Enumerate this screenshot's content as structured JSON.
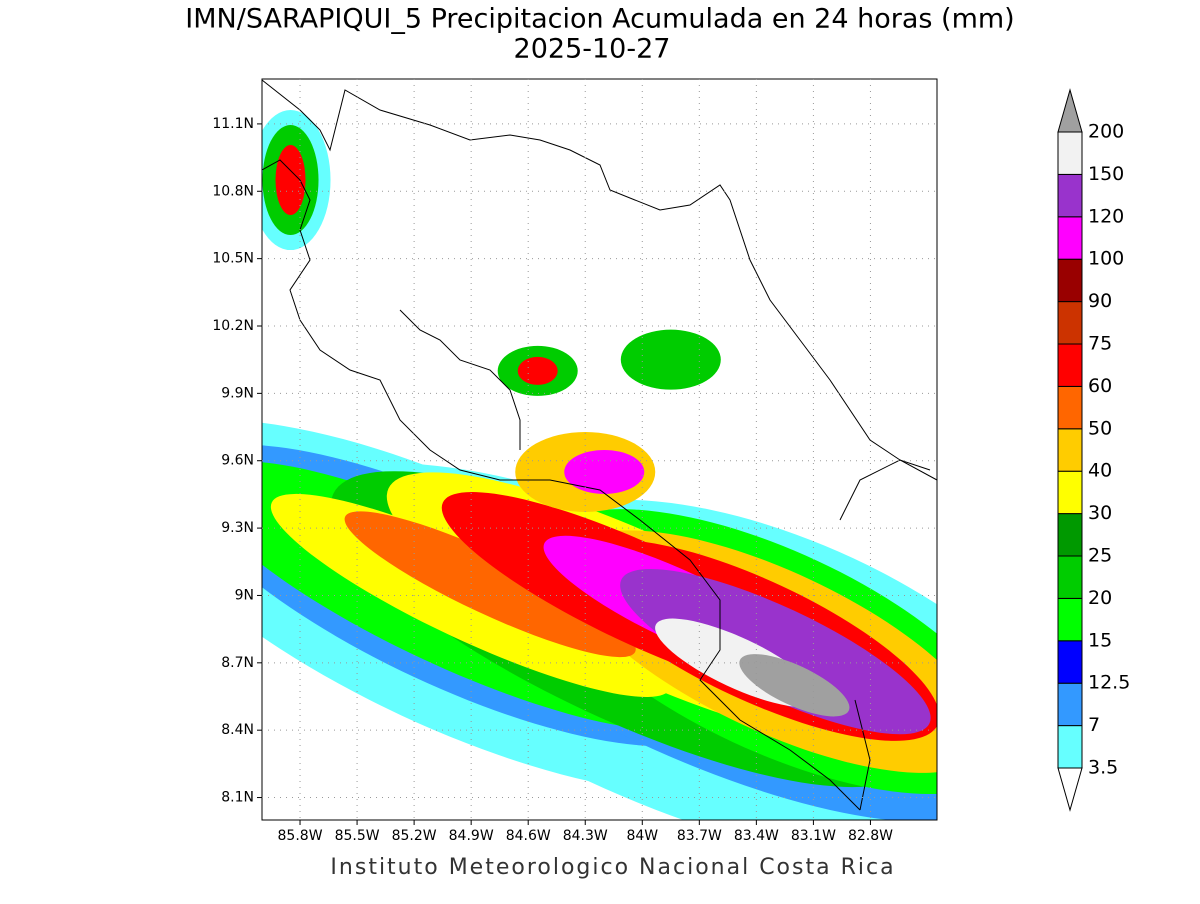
{
  "header": {
    "title": "IMN/SARAPIQUI_5 Precipitacion Acumulada en 24 horas (mm)",
    "date": "2025-10-27"
  },
  "map": {
    "xlim": [
      -86.0,
      -82.45
    ],
    "ylim": [
      8.0,
      11.3
    ],
    "xticks": [
      {
        "value": -85.8,
        "label": "85.8W"
      },
      {
        "value": -85.5,
        "label": "85.5W"
      },
      {
        "value": -85.2,
        "label": "85.2W"
      },
      {
        "value": -84.9,
        "label": "84.9W"
      },
      {
        "value": -84.6,
        "label": "84.6W"
      },
      {
        "value": -84.3,
        "label": "84.3W"
      },
      {
        "value": -84.0,
        "label": "84W"
      },
      {
        "value": -83.7,
        "label": "83.7W"
      },
      {
        "value": -83.4,
        "label": "83.4W"
      },
      {
        "value": -83.1,
        "label": "83.1W"
      },
      {
        "value": -82.8,
        "label": "82.8W"
      }
    ],
    "yticks": [
      {
        "value": 8.1,
        "label": "8.1N"
      },
      {
        "value": 8.4,
        "label": "8.4N"
      },
      {
        "value": 8.7,
        "label": "8.7N"
      },
      {
        "value": 9.0,
        "label": "9N"
      },
      {
        "value": 9.3,
        "label": "9.3N"
      },
      {
        "value": 9.6,
        "label": "9.6N"
      },
      {
        "value": 9.9,
        "label": "9.9N"
      },
      {
        "value": 10.2,
        "label": "10.2N"
      },
      {
        "value": 10.5,
        "label": "10.5N"
      },
      {
        "value": 10.8,
        "label": "10.8N"
      },
      {
        "value": 11.1,
        "label": "11.1N"
      }
    ],
    "grid": true
  },
  "colorbar": {
    "levels": [
      3.5,
      7,
      12.5,
      15,
      20,
      25,
      30,
      40,
      50,
      60,
      75,
      90,
      100,
      120,
      150,
      200
    ],
    "colors": [
      "#ffffff",
      "#66ffff",
      "#3399ff",
      "#0000ff",
      "#00ff00",
      "#00cc00",
      "#009900",
      "#ffff00",
      "#ffcc00",
      "#ff6600",
      "#ff0000",
      "#cc3300",
      "#990000",
      "#ff00ff",
      "#9933cc",
      "#f2f2f2",
      "#a0a0a0"
    ]
  },
  "footer": "Instituto Meteorologico Nacional Costa Rica"
}
